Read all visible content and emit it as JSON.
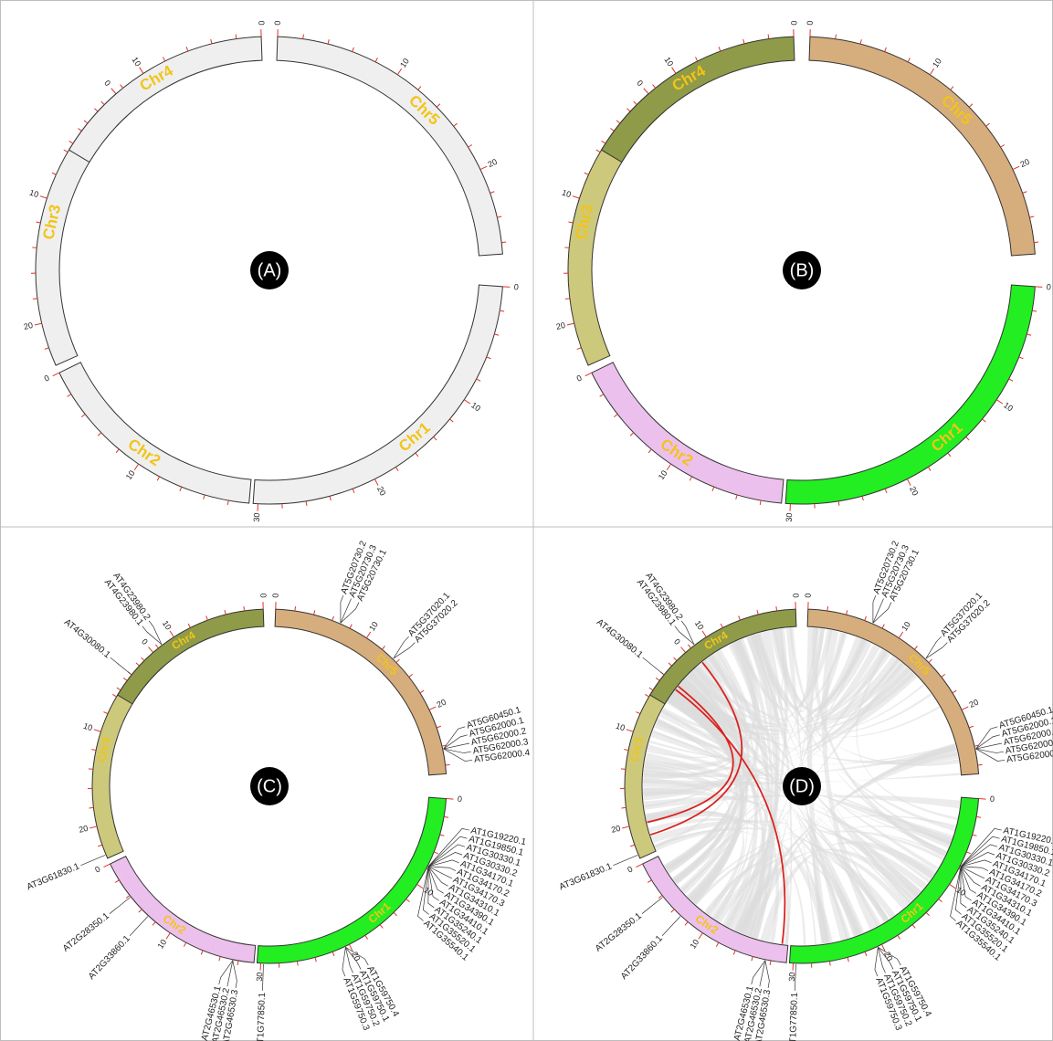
{
  "panels": [
    {
      "label": "(A)",
      "colored": false,
      "genes": false,
      "links": false
    },
    {
      "label": "(B)",
      "colored": true,
      "genes": false,
      "links": false
    },
    {
      "label": "(C)",
      "colored": true,
      "genes": true,
      "links": false
    },
    {
      "label": "(D)",
      "colored": true,
      "genes": true,
      "links": true
    }
  ],
  "colors": {
    "plain_fill": "#efefef",
    "outline": "#333333",
    "tick": "#e0312a",
    "label": "#f2c418",
    "link": "#dcdcdc",
    "highlight_link": "#d9231f",
    "panel_badge": "#000000",
    "grid": "#bdbdbd"
  },
  "chromosomes": [
    {
      "name": "Chr1",
      "length": 30.4,
      "color": "#22ee22",
      "major_ticks": [
        "0",
        "10",
        "20",
        "30"
      ]
    },
    {
      "name": "Chr2",
      "length": 19.7,
      "color": "#ecc0ec",
      "major_ticks": [
        "0",
        "10"
      ]
    },
    {
      "name": "Chr3",
      "length": 23.5,
      "color": "#cdc97c",
      "major_ticks": [
        "0",
        "10",
        "20"
      ]
    },
    {
      "name": "Chr4",
      "length": 18.6,
      "color": "#8f9b48",
      "major_ticks": [
        "0",
        "10"
      ]
    },
    {
      "name": "Chr5",
      "length": 26.9,
      "color": "#d6ad7c",
      "major_ticks": [
        "0",
        "10",
        "20"
      ]
    }
  ],
  "gene_groups": [
    {
      "chr": "Chr4",
      "pos": 11.5,
      "genes": [
        "AT4G23980.1",
        "AT4G23980.2"
      ]
    },
    {
      "chr": "Chr4",
      "pos": 16.0,
      "genes": [
        "AT4G30080.1"
      ]
    },
    {
      "chr": "Chr5",
      "pos": 6.9,
      "genes": [
        "AT5G20730.2",
        "AT5G20730.3",
        "AT5G20730.1"
      ]
    },
    {
      "chr": "Chr5",
      "pos": 13.5,
      "genes": [
        "AT5G37020.1",
        "AT5G37020.2"
      ]
    },
    {
      "chr": "Chr5",
      "pos": 24.3,
      "genes": [
        "AT5G60450.1",
        "AT5G62000.1",
        "AT5G62000.2",
        "AT5G62000.3",
        "AT5G62000.4"
      ]
    },
    {
      "chr": "Chr1",
      "pos": 7.7,
      "genes": [
        "AT1G19220.1",
        "AT1G19850.1",
        "AT1G30330.1",
        "AT1G30330.2",
        "AT1G34170.1",
        "AT1G34170.2",
        "AT1G34170.3",
        "AT1G34310.1",
        "AT1G34390.1",
        "AT1G34410.1",
        "AT1G35240.1",
        "AT1G35520.1",
        "AT1G35540.1"
      ]
    },
    {
      "chr": "Chr1",
      "pos": 20.5,
      "genes": [
        "AT1G59750.4",
        "AT1G59750.1",
        "AT1G59750.2",
        "AT1G59750.3"
      ]
    },
    {
      "chr": "Chr1",
      "pos": 29.7,
      "genes": [
        "AT1G77850.1"
      ]
    },
    {
      "chr": "Chr2",
      "pos": 4.2,
      "genes": [
        "AT2G28350.1"
      ]
    },
    {
      "chr": "Chr2",
      "pos": 7.0,
      "genes": [
        "AT2G33860.1"
      ]
    },
    {
      "chr": "Chr2",
      "pos": 17.4,
      "genes": [
        "AT2G46530.3",
        "AT2G46530.2",
        "AT2G46530.1"
      ]
    },
    {
      "chr": "Chr3",
      "pos": 23.1,
      "genes": [
        "AT3G61830.1"
      ]
    }
  ],
  "highlight_links": [
    {
      "from": {
        "chr": "Chr3",
        "pos": 20.0
      },
      "to": {
        "chr": "Chr4",
        "pos": 16.0
      }
    },
    {
      "from": {
        "chr": "Chr2",
        "pos": 19.0
      },
      "to": {
        "chr": "Chr4",
        "pos": 16.5
      }
    },
    {
      "from": {
        "chr": "Chr3",
        "pos": 21.5
      },
      "to": {
        "chr": "Chr4",
        "pos": 12.0
      }
    }
  ]
}
